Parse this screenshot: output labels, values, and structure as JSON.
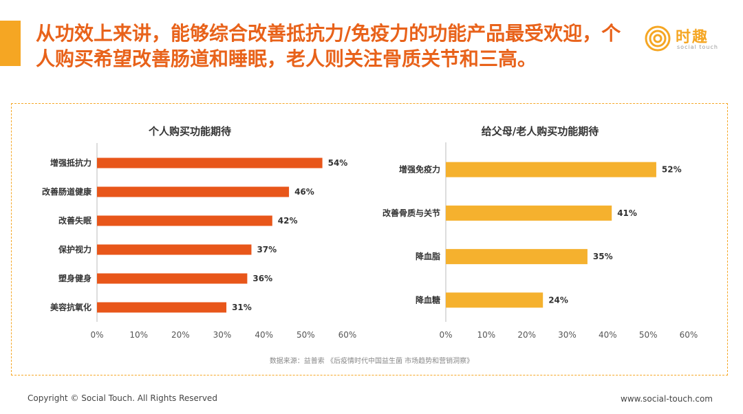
{
  "header": {
    "title": "从功效上来讲，能够综合改善抵抗力/免疫力的功能产品最受欢迎，个人购买希望改善肠道和睡眠，老人则关注骨质关节和三高。",
    "accent_color": "#F5A623",
    "title_color": "#E8621A"
  },
  "logo": {
    "name": "时趣",
    "subtitle": "social touch",
    "icon": "concentric-spiral-icon"
  },
  "chart_data": [
    {
      "type": "bar",
      "orientation": "horizontal",
      "title": "个人购买功能期待",
      "categories": [
        "增强抵抗力",
        "改善肠道健康",
        "改善失眠",
        "保护视力",
        "塑身健身",
        "美容抗氧化"
      ],
      "values": [
        54,
        46,
        42,
        37,
        36,
        31
      ],
      "value_labels": [
        "54%",
        "46%",
        "42%",
        "37%",
        "36%",
        "31%"
      ],
      "xlim": [
        0,
        60
      ],
      "xticks": [
        0,
        10,
        20,
        30,
        40,
        50,
        60
      ],
      "xtick_labels": [
        "0%",
        "10%",
        "20%",
        "30%",
        "40%",
        "50%",
        "60%"
      ],
      "xlabel": "",
      "ylabel": "",
      "grid": false,
      "color": "#E8561A"
    },
    {
      "type": "bar",
      "orientation": "horizontal",
      "title": "给父母/老人购买功能期待",
      "categories": [
        "增强免疫力",
        "改善骨质与关节",
        "降血脂",
        "降血糖"
      ],
      "values": [
        52,
        41,
        35,
        24
      ],
      "value_labels": [
        "52%",
        "41%",
        "35%",
        "24%"
      ],
      "xlim": [
        0,
        60
      ],
      "xticks": [
        0,
        10,
        20,
        30,
        40,
        50,
        60
      ],
      "xtick_labels": [
        "0%",
        "10%",
        "20%",
        "30%",
        "40%",
        "50%",
        "60%"
      ],
      "xlabel": "",
      "ylabel": "",
      "grid": false,
      "color": "#F5B12E"
    }
  ],
  "source_note": "数据来源：益普索 《后疫情时代中国益生菌 市场趋势和营销洞察》",
  "footer": {
    "copyright": "Copyright © Social Touch. All Rights Reserved",
    "website": "www.social-touch.com"
  }
}
